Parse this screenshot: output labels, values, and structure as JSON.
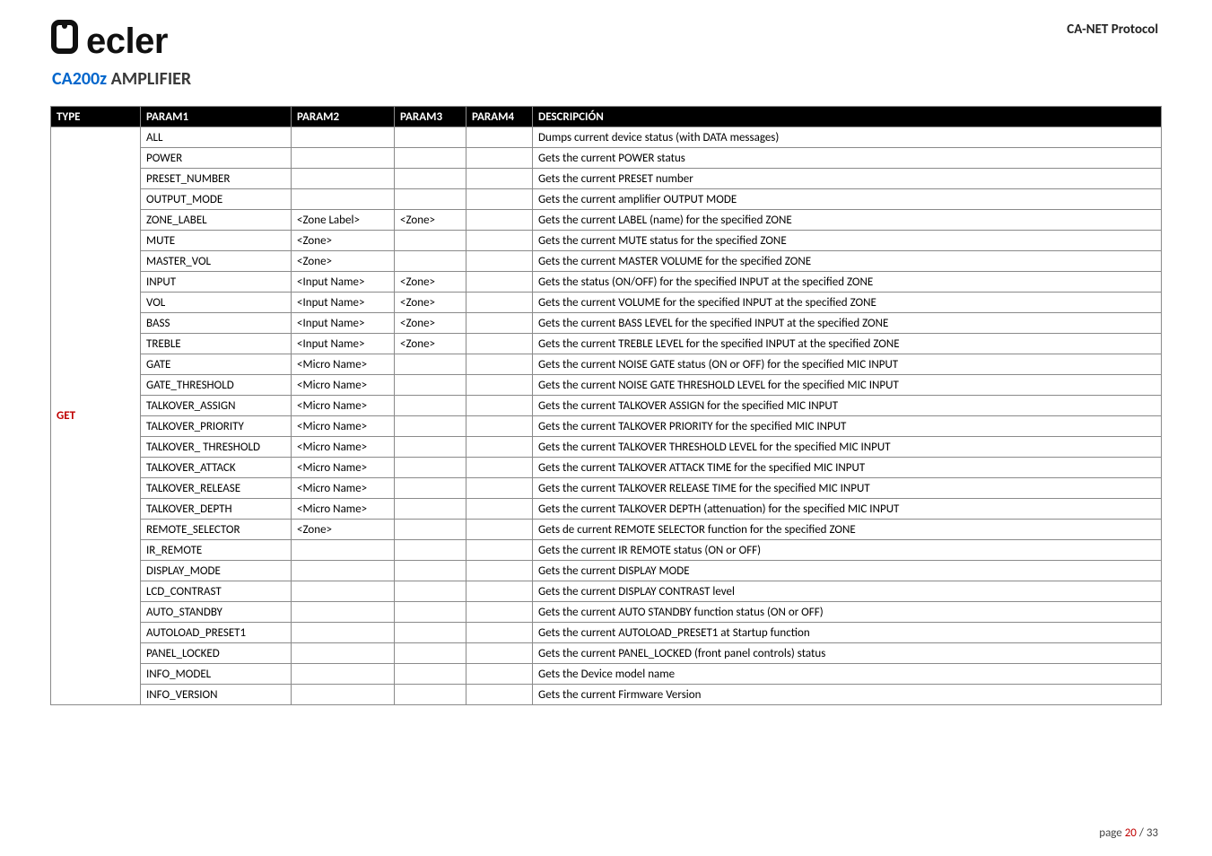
{
  "brand_text": "ecler",
  "doc_title": "CA-NET Protocol",
  "subheading": {
    "model": "CA200z",
    "rest": " AMPLIFIER"
  },
  "columns": [
    "TYPE",
    "PARAM1",
    "PARAM2",
    "PARAM3",
    "PARAM4",
    "DESCRIPCIÓN"
  ],
  "type_label": "GET",
  "rows": [
    {
      "p1": "ALL",
      "p2": "",
      "p3": "",
      "p4": "",
      "desc": "Dumps current device status (with DATA messages)"
    },
    {
      "p1": "POWER",
      "p2": "",
      "p3": "",
      "p4": "",
      "desc": "Gets the current POWER status"
    },
    {
      "p1": "PRESET_NUMBER",
      "p2": "",
      "p3": "",
      "p4": "",
      "desc": "Gets the current PRESET number"
    },
    {
      "p1": "OUTPUT_MODE",
      "p2": "",
      "p3": "",
      "p4": "",
      "desc": "Gets the current amplifier OUTPUT MODE"
    },
    {
      "p1": "ZONE_LABEL",
      "p2": "<Zone Label>",
      "p3": "<Zone>",
      "p4": "",
      "desc": "Gets the current LABEL (name) for the specified ZONE"
    },
    {
      "p1": "MUTE",
      "p2": "<Zone>",
      "p3": "",
      "p4": "",
      "desc": "Gets the current MUTE status for the specified ZONE"
    },
    {
      "p1": "MASTER_VOL",
      "p2": "<Zone>",
      "p3": "",
      "p4": "",
      "desc": "Gets the current MASTER VOLUME for the specified ZONE"
    },
    {
      "p1": "INPUT",
      "p2": "<Input Name>",
      "p3": "<Zone>",
      "p4": "",
      "desc": "Gets the status (ON/OFF) for the specified INPUT at the specified ZONE"
    },
    {
      "p1": "VOL",
      "p2": "<Input Name>",
      "p3": "<Zone>",
      "p4": "",
      "desc": "Gets the current VOLUME for the specified INPUT at the specified ZONE"
    },
    {
      "p1": "BASS",
      "p2": "<Input Name>",
      "p3": "<Zone>",
      "p4": "",
      "desc": "Gets the current BASS LEVEL for the specified INPUT at the specified ZONE"
    },
    {
      "p1": "TREBLE",
      "p2": "<Input Name>",
      "p3": "<Zone>",
      "p4": "",
      "desc": "Gets the current TREBLE LEVEL for the specified INPUT at the specified ZONE"
    },
    {
      "p1": "GATE",
      "p2": "<Micro Name>",
      "p3": "",
      "p4": "",
      "desc": "Gets the current NOISE GATE status (ON or OFF) for the specified MIC INPUT"
    },
    {
      "p1": "GATE_THRESHOLD",
      "p2": "<Micro Name>",
      "p3": "",
      "p4": "",
      "desc": "Gets the current NOISE GATE THRESHOLD LEVEL for the specified MIC INPUT"
    },
    {
      "p1": "TALKOVER_ASSIGN",
      "p2": "<Micro Name>",
      "p3": "",
      "p4": "",
      "desc": "Gets the current TALKOVER ASSIGN for the specified MIC INPUT"
    },
    {
      "p1": "TALKOVER_PRIORITY",
      "p2": "<Micro Name>",
      "p3": "",
      "p4": "",
      "desc": "Gets the current TALKOVER PRIORITY for the specified MIC INPUT"
    },
    {
      "p1": "TALKOVER_ THRESHOLD",
      "p2": "<Micro Name>",
      "p3": "",
      "p4": "",
      "desc": "Gets the current TALKOVER THRESHOLD LEVEL for the specified MIC INPUT"
    },
    {
      "p1": "TALKOVER_ATTACK",
      "p2": "<Micro Name>",
      "p3": "",
      "p4": "",
      "desc": "Gets the current TALKOVER ATTACK TIME for the specified MIC INPUT"
    },
    {
      "p1": "TALKOVER_RELEASE",
      "p2": "<Micro Name>",
      "p3": "",
      "p4": "",
      "desc": "Gets the current TALKOVER RELEASE TIME for the specified MIC INPUT"
    },
    {
      "p1": "TALKOVER_DEPTH",
      "p2": "<Micro Name>",
      "p3": "",
      "p4": "",
      "desc": "Gets the current TALKOVER DEPTH (attenuation) for the specified MIC INPUT"
    },
    {
      "p1": "REMOTE_SELECTOR",
      "p2": "<Zone>",
      "p3": "",
      "p4": "",
      "desc": "Gets de current REMOTE SELECTOR function for the specified ZONE"
    },
    {
      "p1": "IR_REMOTE",
      "p2": "",
      "p3": "",
      "p4": "",
      "desc": "Gets the current IR REMOTE status (ON or OFF)"
    },
    {
      "p1": "DISPLAY_MODE",
      "p2": "",
      "p3": "",
      "p4": "",
      "desc": "Gets the current DISPLAY MODE"
    },
    {
      "p1": "LCD_CONTRAST",
      "p2": "",
      "p3": "",
      "p4": "",
      "desc": "Gets the current DISPLAY CONTRAST level"
    },
    {
      "p1": "AUTO_STANDBY",
      "p2": "",
      "p3": "",
      "p4": "",
      "desc": "Gets the current AUTO STANDBY function status (ON or OFF)"
    },
    {
      "p1": "AUTOLOAD_PRESET1",
      "p2": "",
      "p3": "",
      "p4": "",
      "desc": "Gets the current AUTOLOAD_PRESET1 at Startup function"
    },
    {
      "p1": "PANEL_LOCKED",
      "p2": "",
      "p3": "",
      "p4": "",
      "desc": "Gets the current PANEL_LOCKED (front panel controls) status"
    },
    {
      "p1": "INFO_MODEL",
      "p2": "",
      "p3": "",
      "p4": "",
      "desc": "Gets the Device model name"
    },
    {
      "p1": "INFO_VERSION",
      "p2": "",
      "p3": "",
      "p4": "",
      "desc": "Gets the current Firmware Version"
    }
  ],
  "footer": {
    "label": "page  ",
    "current": "20",
    "sep": " / ",
    "total": "33"
  },
  "colors": {
    "header_bg": "#000000",
    "header_fg": "#ffffff",
    "type_fg": "#c00000",
    "link_fg": "#0066cc",
    "border": "#8a8a8a"
  }
}
